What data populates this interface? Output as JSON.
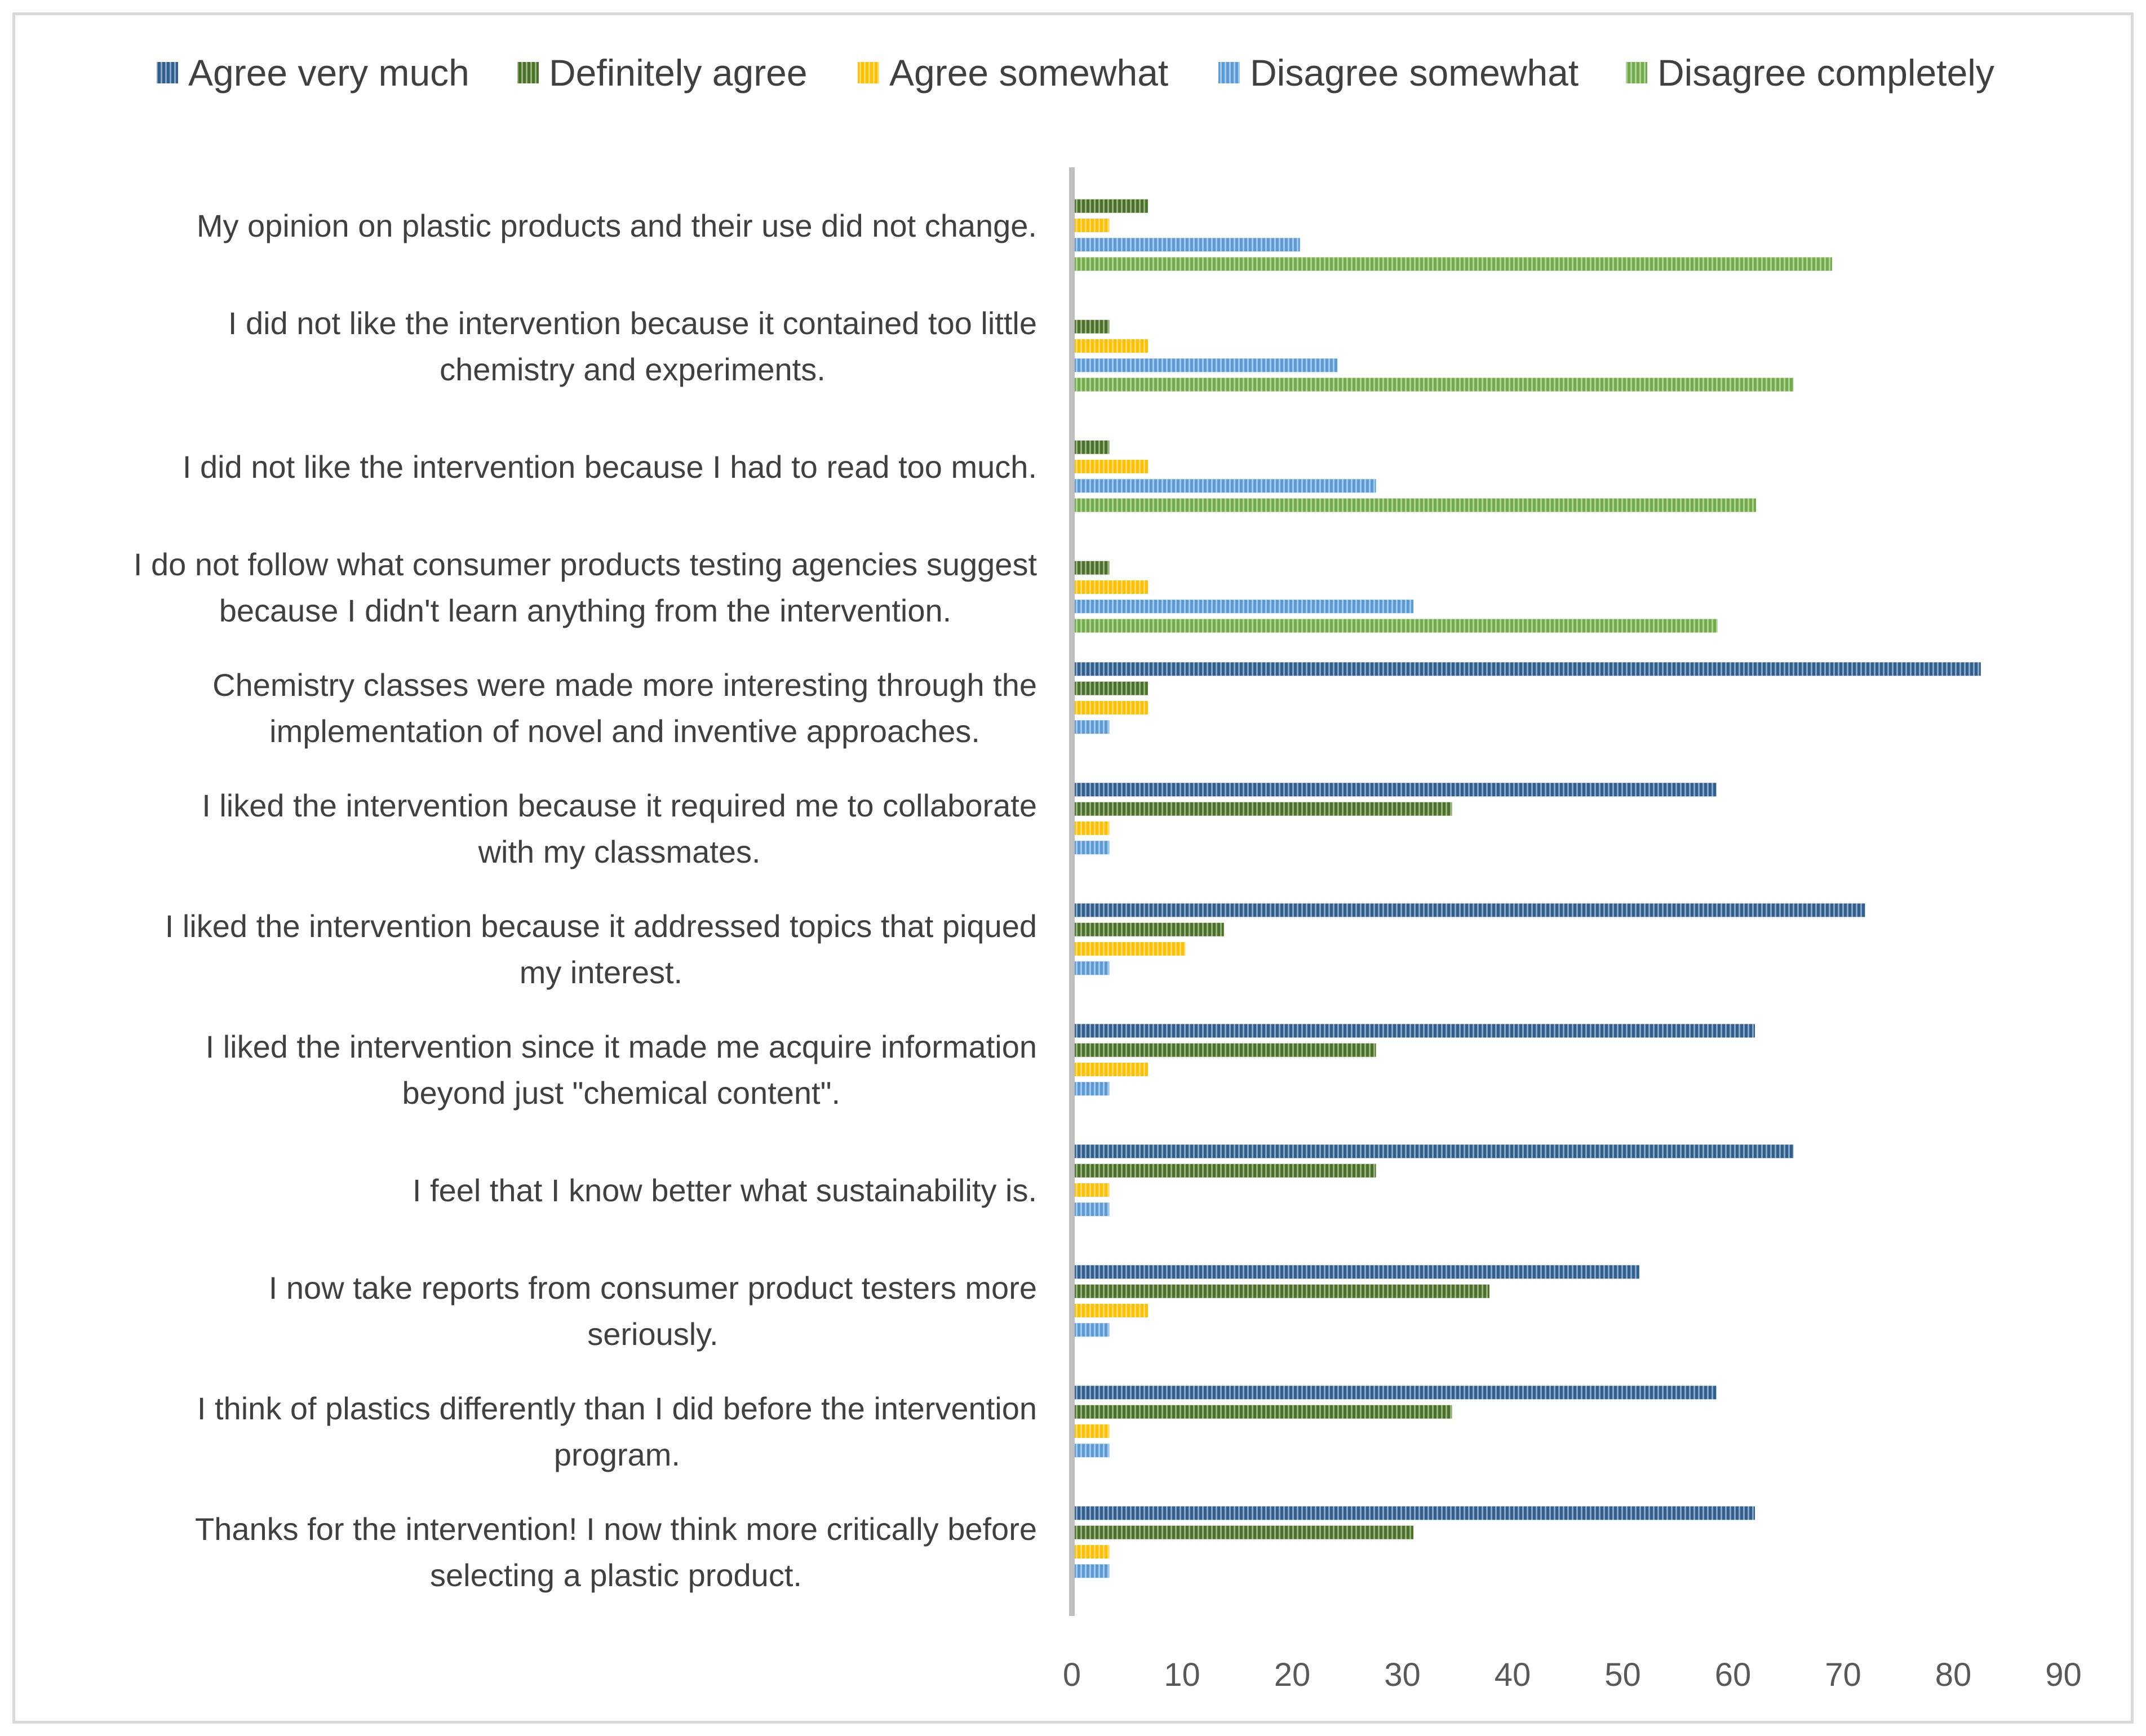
{
  "chart_data": {
    "type": "bar",
    "orientation": "horizontal",
    "title": "",
    "xlabel": "",
    "ylabel": "",
    "xlim": [
      0,
      90
    ],
    "x_ticks": [
      0,
      10,
      20,
      30,
      40,
      50,
      60,
      70,
      80,
      90
    ],
    "grid": false,
    "legend_position": "top",
    "categories": [
      [
        "My opinion on plastic products and their use did not change."
      ],
      [
        "I did not like the intervention because it contained too little",
        "chemistry and experiments."
      ],
      [
        "I did not like the intervention because I had to read too much."
      ],
      [
        "I do not follow what consumer products testing agencies suggest",
        "because I didn't learn anything from the intervention."
      ],
      [
        "Chemistry classes were made more interesting through the",
        "implementation of novel and inventive approaches."
      ],
      [
        "I liked the intervention because it required me to collaborate",
        "with my classmates."
      ],
      [
        "I liked the intervention because it addressed topics that piqued",
        "my interest."
      ],
      [
        "I liked the intervention since it made me acquire information",
        "beyond just \"chemical content\"."
      ],
      [
        "I feel that I know better what sustainability is."
      ],
      [
        "I now take reports from consumer product testers more",
        "seriously."
      ],
      [
        "I think of plastics differently than I did before the intervention",
        "program."
      ],
      [
        "Thanks for the intervention! I now think more critically before",
        "selecting a plastic product."
      ]
    ],
    "series": [
      {
        "name": "Agree very much",
        "color": "#2e5f8f",
        "values": [
          0,
          0,
          0,
          0,
          82.5,
          58.5,
          72,
          62,
          65.5,
          51.5,
          58.5,
          62
        ]
      },
      {
        "name": "Definitely agree",
        "color": "#4a7328",
        "values": [
          6.9,
          3.4,
          3.4,
          3.4,
          6.9,
          34.5,
          13.8,
          27.6,
          27.6,
          37.9,
          34.5,
          31
        ]
      },
      {
        "name": "Agree somewhat",
        "color": "#ffc000",
        "values": [
          3.4,
          6.9,
          6.9,
          6.9,
          6.9,
          3.4,
          10.3,
          6.9,
          3.4,
          6.9,
          3.4,
          3.4
        ]
      },
      {
        "name": "Disagree somewhat",
        "color": "#5b9bd5",
        "values": [
          20.7,
          24.1,
          27.6,
          31,
          3.4,
          3.4,
          3.4,
          3.4,
          3.4,
          3.4,
          3.4,
          3.4
        ]
      },
      {
        "name": "Disagree completely",
        "color": "#70ad47",
        "values": [
          69,
          65.5,
          62.1,
          58.6,
          0,
          0,
          0,
          0,
          0,
          0,
          0,
          0
        ]
      }
    ],
    "axis_color": "#bfbfbf",
    "frame_color": "#d9d9d9"
  }
}
